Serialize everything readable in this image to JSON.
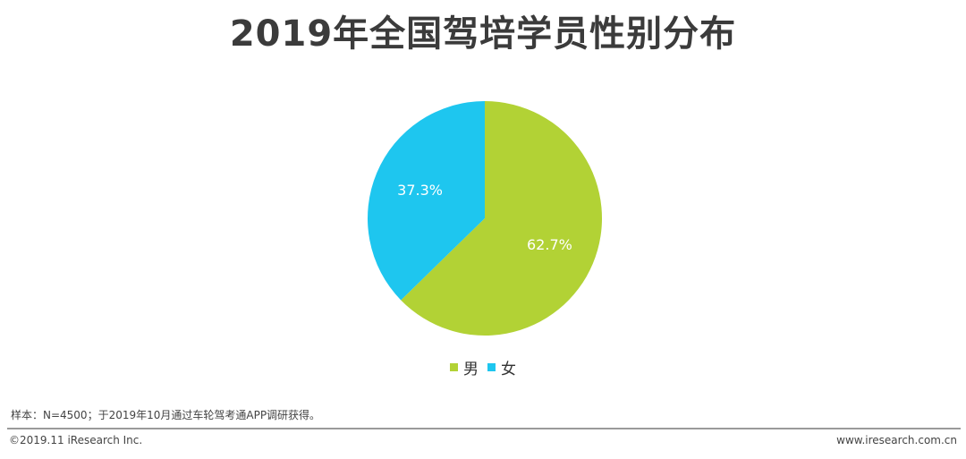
{
  "title": "2019年全国驾培学员性别分布",
  "chart_data": {
    "type": "pie",
    "title": "2019年全国驾培学员性别分布",
    "slices": [
      {
        "name": "男",
        "value": 62.7,
        "label": "62.7%",
        "color": "#b2d235"
      },
      {
        "name": "女",
        "value": 37.3,
        "label": "37.3%",
        "color": "#1ec6ef"
      }
    ],
    "start": "12 o'clock",
    "direction": "clockwise",
    "legend_position": "bottom"
  },
  "legend": {
    "items": [
      {
        "label": "男",
        "color": "#b2d235"
      },
      {
        "label": "女",
        "color": "#1ec6ef"
      }
    ]
  },
  "source_note": "样本：N=4500；于2019年10月通过车轮驾考通APP调研获得。",
  "footer": {
    "copyright": "©2019.11 iResearch Inc.",
    "website": "www.iresearch.com.cn"
  }
}
